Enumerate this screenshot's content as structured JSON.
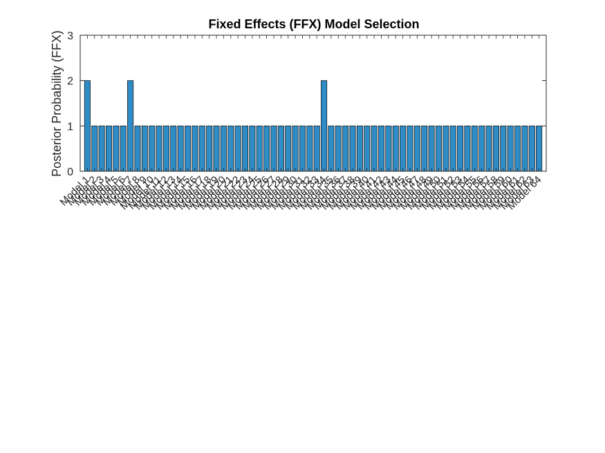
{
  "chart_data": {
    "type": "bar",
    "title": "Fixed Effects (FFX) Model Selection",
    "xlabel": "",
    "ylabel": "Posterior Probability (FFX)",
    "ylim": [
      0,
      3
    ],
    "yticks": [
      "0",
      "1",
      "2",
      "3"
    ],
    "grid": false,
    "legend": "none",
    "bar_color": "#2e8cc6",
    "categories": [
      "Model 1",
      "Model 2",
      "Model 3",
      "Model 4",
      "Model 5",
      "Model 6",
      "Model 7",
      "Model 8",
      "Model 9",
      "Model 10",
      "Model 11",
      "Model 12",
      "Model 13",
      "Model 14",
      "Model 15",
      "Model 16",
      "Model 17",
      "Model 18",
      "Model 19",
      "Model 20",
      "Model 21",
      "Model 22",
      "Model 23",
      "Model 24",
      "Model 25",
      "Model 26",
      "Model 27",
      "Model 28",
      "Model 29",
      "Model 30",
      "Model 31",
      "Model 32",
      "Model 33",
      "Model 34",
      "Model 35",
      "Model 36",
      "Model 37",
      "Model 38",
      "Model 39",
      "Model 40",
      "Model 41",
      "Model 42",
      "Model 43",
      "Model 44",
      "Model 45",
      "Model 46",
      "Model 47",
      "Model 48",
      "Model 49",
      "Model 50",
      "Model 51",
      "Model 52",
      "Model 53",
      "Model 54",
      "Model 55",
      "Model 56",
      "Model 57",
      "Model 58",
      "Model 59",
      "Model 60",
      "Model 61",
      "Model 62",
      "Model 63",
      "Model 64"
    ],
    "values": [
      2,
      1,
      1,
      1,
      1,
      1,
      2,
      1,
      1,
      1,
      1,
      1,
      1,
      1,
      1,
      1,
      1,
      1,
      1,
      1,
      1,
      1,
      1,
      1,
      1,
      1,
      1,
      1,
      1,
      1,
      1,
      1,
      1,
      2,
      1,
      1,
      1,
      1,
      1,
      1,
      1,
      1,
      1,
      1,
      1,
      1,
      1,
      1,
      1,
      1,
      1,
      1,
      1,
      1,
      1,
      1,
      1,
      1,
      1,
      1,
      1,
      1,
      1,
      1
    ]
  }
}
